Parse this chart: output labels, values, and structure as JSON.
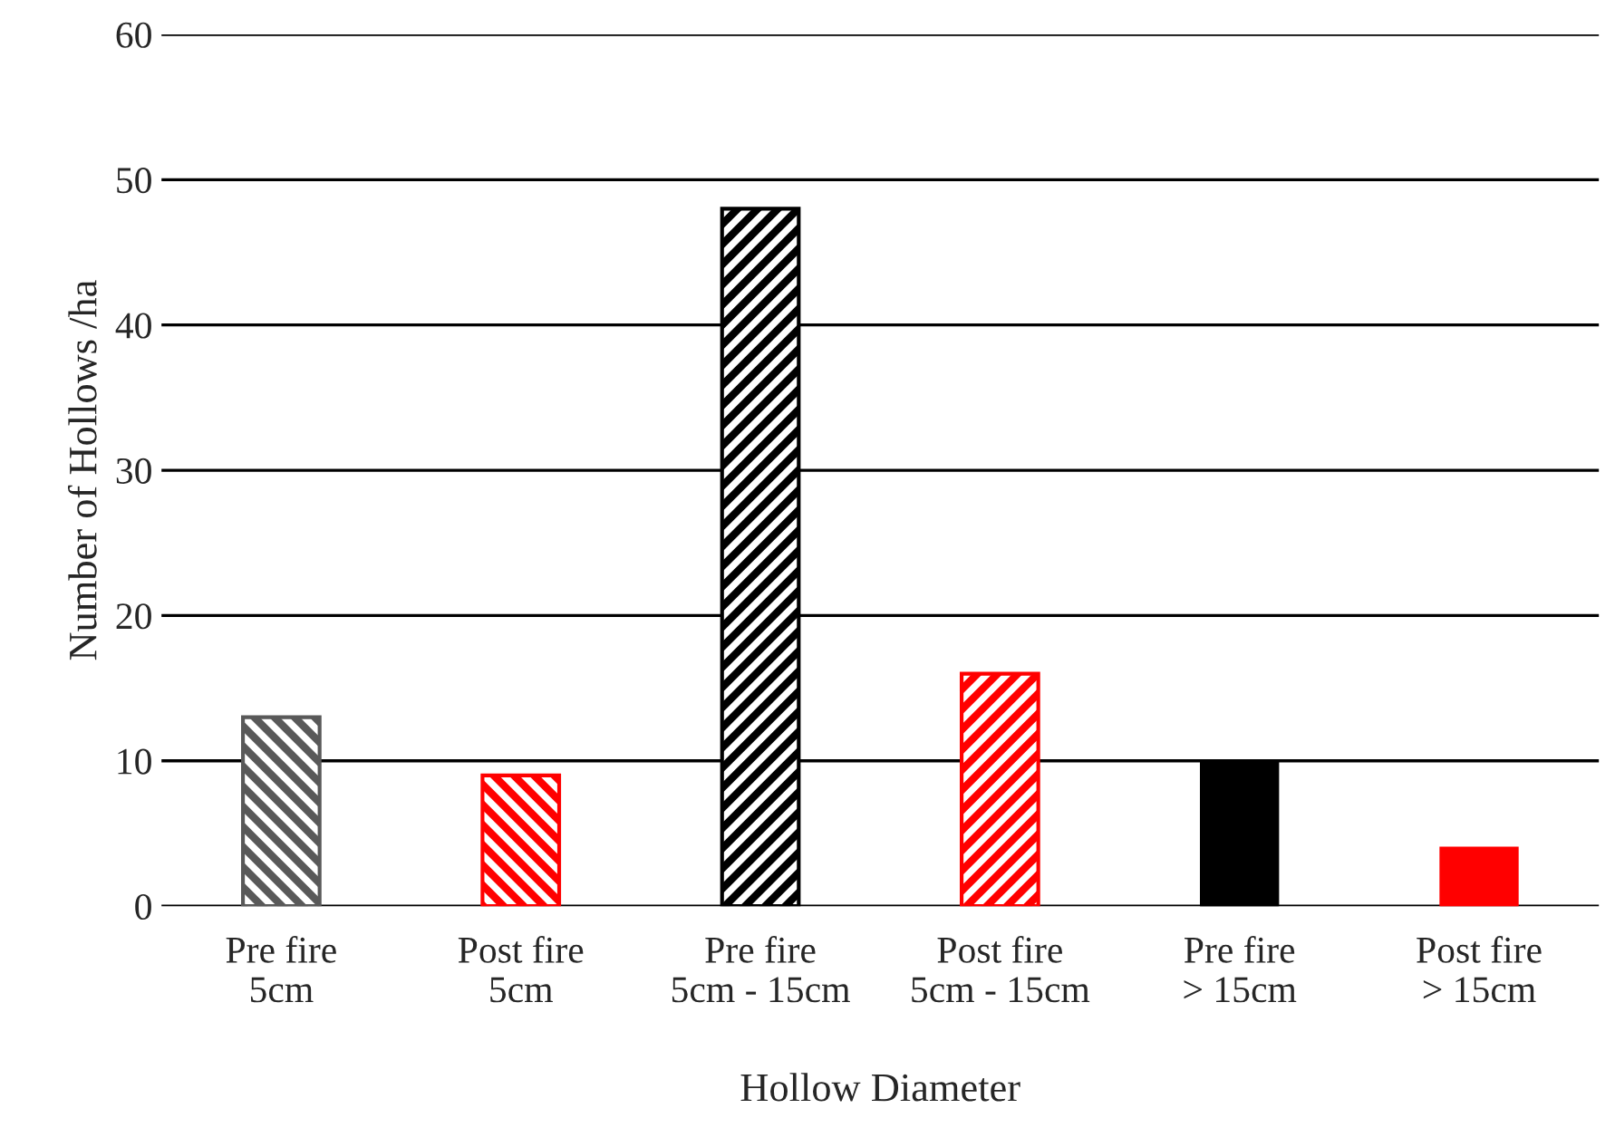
{
  "chart_data": {
    "type": "bar",
    "xlabel": "Hollow Diameter",
    "ylabel": "Number of Hollows /ha",
    "categories": [
      "Pre fire\n5cm",
      "Post fire\n5cm",
      "Pre fire\n5cm - 15cm",
      "Post fire\n5cm - 15cm",
      "Pre fire\n> 15cm",
      "Post fire\n> 15cm"
    ],
    "values": [
      13,
      9,
      48,
      16,
      10,
      4
    ],
    "colors": [
      "#595959",
      "#ff0000",
      "#000000",
      "#ff0000",
      "#000000",
      "#ff0000"
    ],
    "ylim": [
      0,
      60
    ],
    "yticks": [
      0,
      10,
      20,
      30,
      40,
      50,
      60
    ],
    "grid": "y"
  }
}
